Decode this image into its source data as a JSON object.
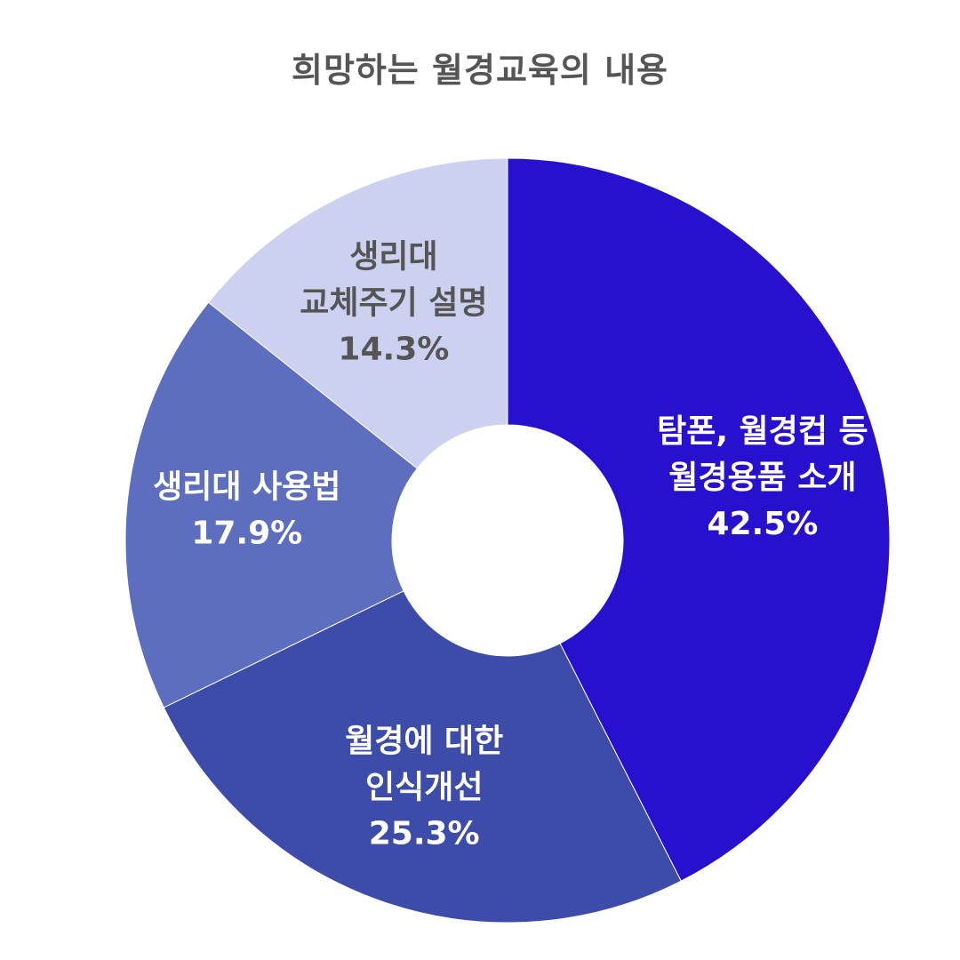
{
  "chart_data": {
    "type": "pie",
    "title": "희망하는 월경교육의 내용",
    "donut": true,
    "start_angle_deg": 0,
    "direction": "clockwise",
    "slices": [
      {
        "label_lines": [
          "탐폰, 월경컵 등",
          "월경용품 소개"
        ],
        "value": 42.5,
        "value_label": "42.5%",
        "color": "#2810cf",
        "text_color": "#ffffff"
      },
      {
        "label_lines": [
          "월경에 대한",
          "인식개선"
        ],
        "value": 25.3,
        "value_label": "25.3%",
        "color": "#3c4ca8",
        "text_color": "#ffffff"
      },
      {
        "label_lines": [
          "생리대 사용법"
        ],
        "value": 17.9,
        "value_label": "17.9%",
        "color": "#5e6ebe",
        "text_color": "#ffffff"
      },
      {
        "label_lines": [
          "생리대",
          "교체주기 설명"
        ],
        "value": 14.3,
        "value_label": "14.3%",
        "color": "#cbd1ee",
        "text_color": "#555555"
      }
    ]
  }
}
